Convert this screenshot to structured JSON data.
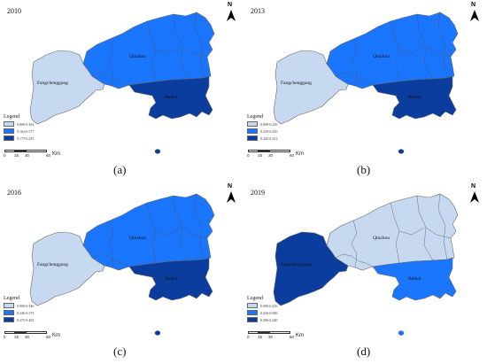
{
  "panels": [
    {
      "year": "2010",
      "caption": "(a)",
      "legend_title": "Legend",
      "legend": [
        "0.000-0.162",
        "0.162-0.177",
        "0.177-0.255"
      ],
      "colors": {
        "fangchenggang": "#c6d9f1",
        "qinzhou": "#1a75ff",
        "beihai": "#0a3d9e"
      },
      "labels": {
        "fangchenggang": "Fangchenggang",
        "qinzhou": "Qinzhou",
        "beihai": "Beihai"
      }
    },
    {
      "year": "2013",
      "caption": "(b)",
      "legend_title": "Legend",
      "legend": [
        "0.000-0.229",
        "0.229-0.245",
        "0.245-0.321"
      ],
      "colors": {
        "fangchenggang": "#c6d9f1",
        "qinzhou": "#1a75ff",
        "beihai": "#0a3d9e"
      },
      "labels": {
        "fangchenggang": "Fangchenggang",
        "qinzhou": "Qinzhou",
        "beihai": "Beihai"
      }
    },
    {
      "year": "2016",
      "caption": "(c)",
      "legend_title": "Legend",
      "legend": [
        "0.000-0.346",
        "0.346-0.375",
        "0.375-0.402"
      ],
      "colors": {
        "fangchenggang": "#c6d9f1",
        "qinzhou": "#1a75ff",
        "beihai": "#0a3d9e"
      },
      "labels": {
        "fangchenggang": "Fangchenggang",
        "qinzhou": "Qinzhou",
        "beihai": "Beihai"
      }
    },
    {
      "year": "2019",
      "caption": "(d)",
      "legend_title": "Legend",
      "legend": [
        "0.000-0.416",
        "0.416-0.506",
        "0.506-0.540"
      ],
      "colors": {
        "fangchenggang": "#0a3d9e",
        "qinzhou": "#c6d9f1",
        "beihai": "#1a75ff"
      },
      "labels": {
        "fangchenggang": "Fangchenggang",
        "qinzhou": "Qinzhou",
        "beihai": "Beihai"
      }
    }
  ],
  "legend_colors": [
    "#c6d9f1",
    "#1a75ff",
    "#0a3d9e"
  ],
  "north_label": "N",
  "scale": {
    "ticks": [
      "0",
      "15",
      "30",
      "60"
    ],
    "unit": "Km"
  }
}
